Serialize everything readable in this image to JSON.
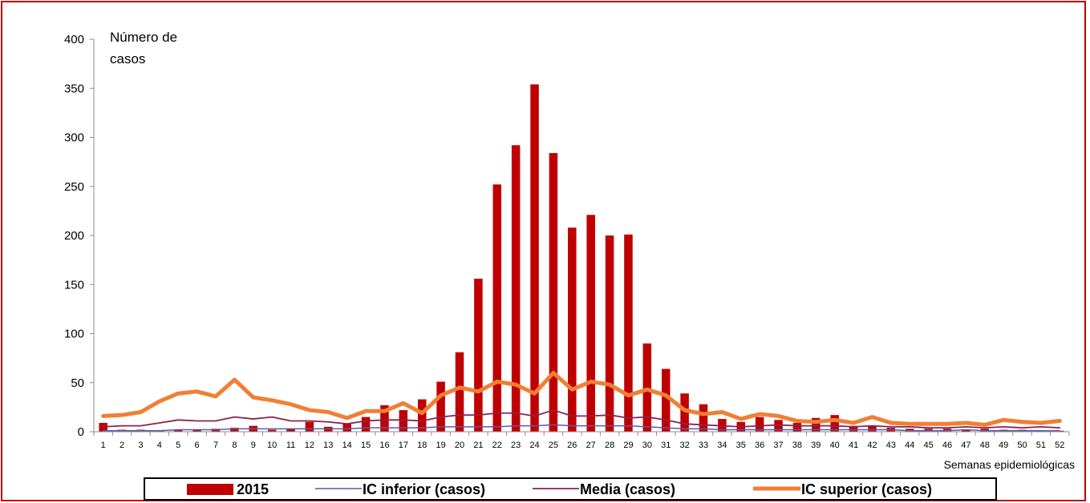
{
  "chart_data": {
    "type": "bar",
    "ylabel_line1": "Número de",
    "ylabel_line2": "casos",
    "xlabel": "Semanas epidemiológicas",
    "ylim": [
      0,
      400
    ],
    "yticks": [
      0,
      50,
      100,
      150,
      200,
      250,
      300,
      350,
      400
    ],
    "legend_position": "bottom",
    "categories": [
      "1",
      "2",
      "3",
      "4",
      "5",
      "6",
      "7",
      "8",
      "9",
      "10",
      "11",
      "12",
      "13",
      "14",
      "15",
      "16",
      "17",
      "18",
      "19",
      "20",
      "21",
      "22",
      "23",
      "24",
      "25",
      "26",
      "27",
      "28",
      "29",
      "30",
      "31",
      "32",
      "33",
      "34",
      "35",
      "36",
      "37",
      "38",
      "39",
      "40",
      "41",
      "42",
      "43",
      "44",
      "45",
      "46",
      "47",
      "48",
      "49",
      "50",
      "51",
      "52"
    ],
    "series": [
      {
        "name": "2015",
        "kind": "bar",
        "color": "#c00000",
        "values": [
          9,
          2,
          2,
          1,
          2,
          2,
          3,
          4,
          6,
          2,
          3,
          10,
          5,
          8,
          15,
          27,
          22,
          33,
          51,
          81,
          156,
          252,
          292,
          354,
          284,
          208,
          221,
          200,
          201,
          90,
          64,
          39,
          28,
          13,
          10,
          15,
          12,
          9,
          14,
          17,
          6,
          6,
          4,
          3,
          3,
          3,
          2,
          3,
          2,
          2,
          1,
          1
        ]
      },
      {
        "name": "IC inferior (casos)",
        "kind": "line",
        "color": "#5b5aa8",
        "width": 1.5,
        "values": [
          1,
          1,
          1,
          1,
          2,
          2,
          2,
          3,
          3,
          3,
          3,
          3,
          3,
          3,
          4,
          4,
          4,
          4,
          5,
          5,
          5,
          5,
          6,
          6,
          7,
          6,
          6,
          6,
          6,
          5,
          4,
          3,
          3,
          2,
          2,
          2,
          2,
          2,
          2,
          2,
          2,
          2,
          2,
          1,
          1,
          1,
          2,
          1,
          1,
          1,
          1,
          1
        ]
      },
      {
        "name": "Media (casos)",
        "kind": "line",
        "color": "#8b2252",
        "width": 1.8,
        "values": [
          5,
          6,
          6,
          9,
          12,
          11,
          11,
          15,
          13,
          15,
          11,
          11,
          10,
          8,
          11,
          12,
          12,
          11,
          15,
          17,
          17,
          19,
          19,
          16,
          22,
          16,
          16,
          17,
          14,
          15,
          12,
          8,
          7,
          6,
          5,
          6,
          7,
          6,
          6,
          6,
          5,
          6,
          5,
          5,
          4,
          4,
          5,
          4,
          5,
          4,
          5,
          4
        ]
      },
      {
        "name": "IC superior (casos)",
        "kind": "line",
        "color": "#f07f35",
        "width": 5,
        "values": [
          16,
          17,
          20,
          31,
          39,
          41,
          36,
          53,
          35,
          32,
          28,
          22,
          20,
          14,
          21,
          21,
          29,
          19,
          37,
          45,
          41,
          51,
          48,
          39,
          60,
          43,
          51,
          48,
          37,
          43,
          37,
          22,
          18,
          20,
          13,
          18,
          16,
          11,
          10,
          12,
          9,
          15,
          9,
          8,
          8,
          8,
          9,
          7,
          12,
          10,
          9,
          11
        ]
      }
    ]
  }
}
